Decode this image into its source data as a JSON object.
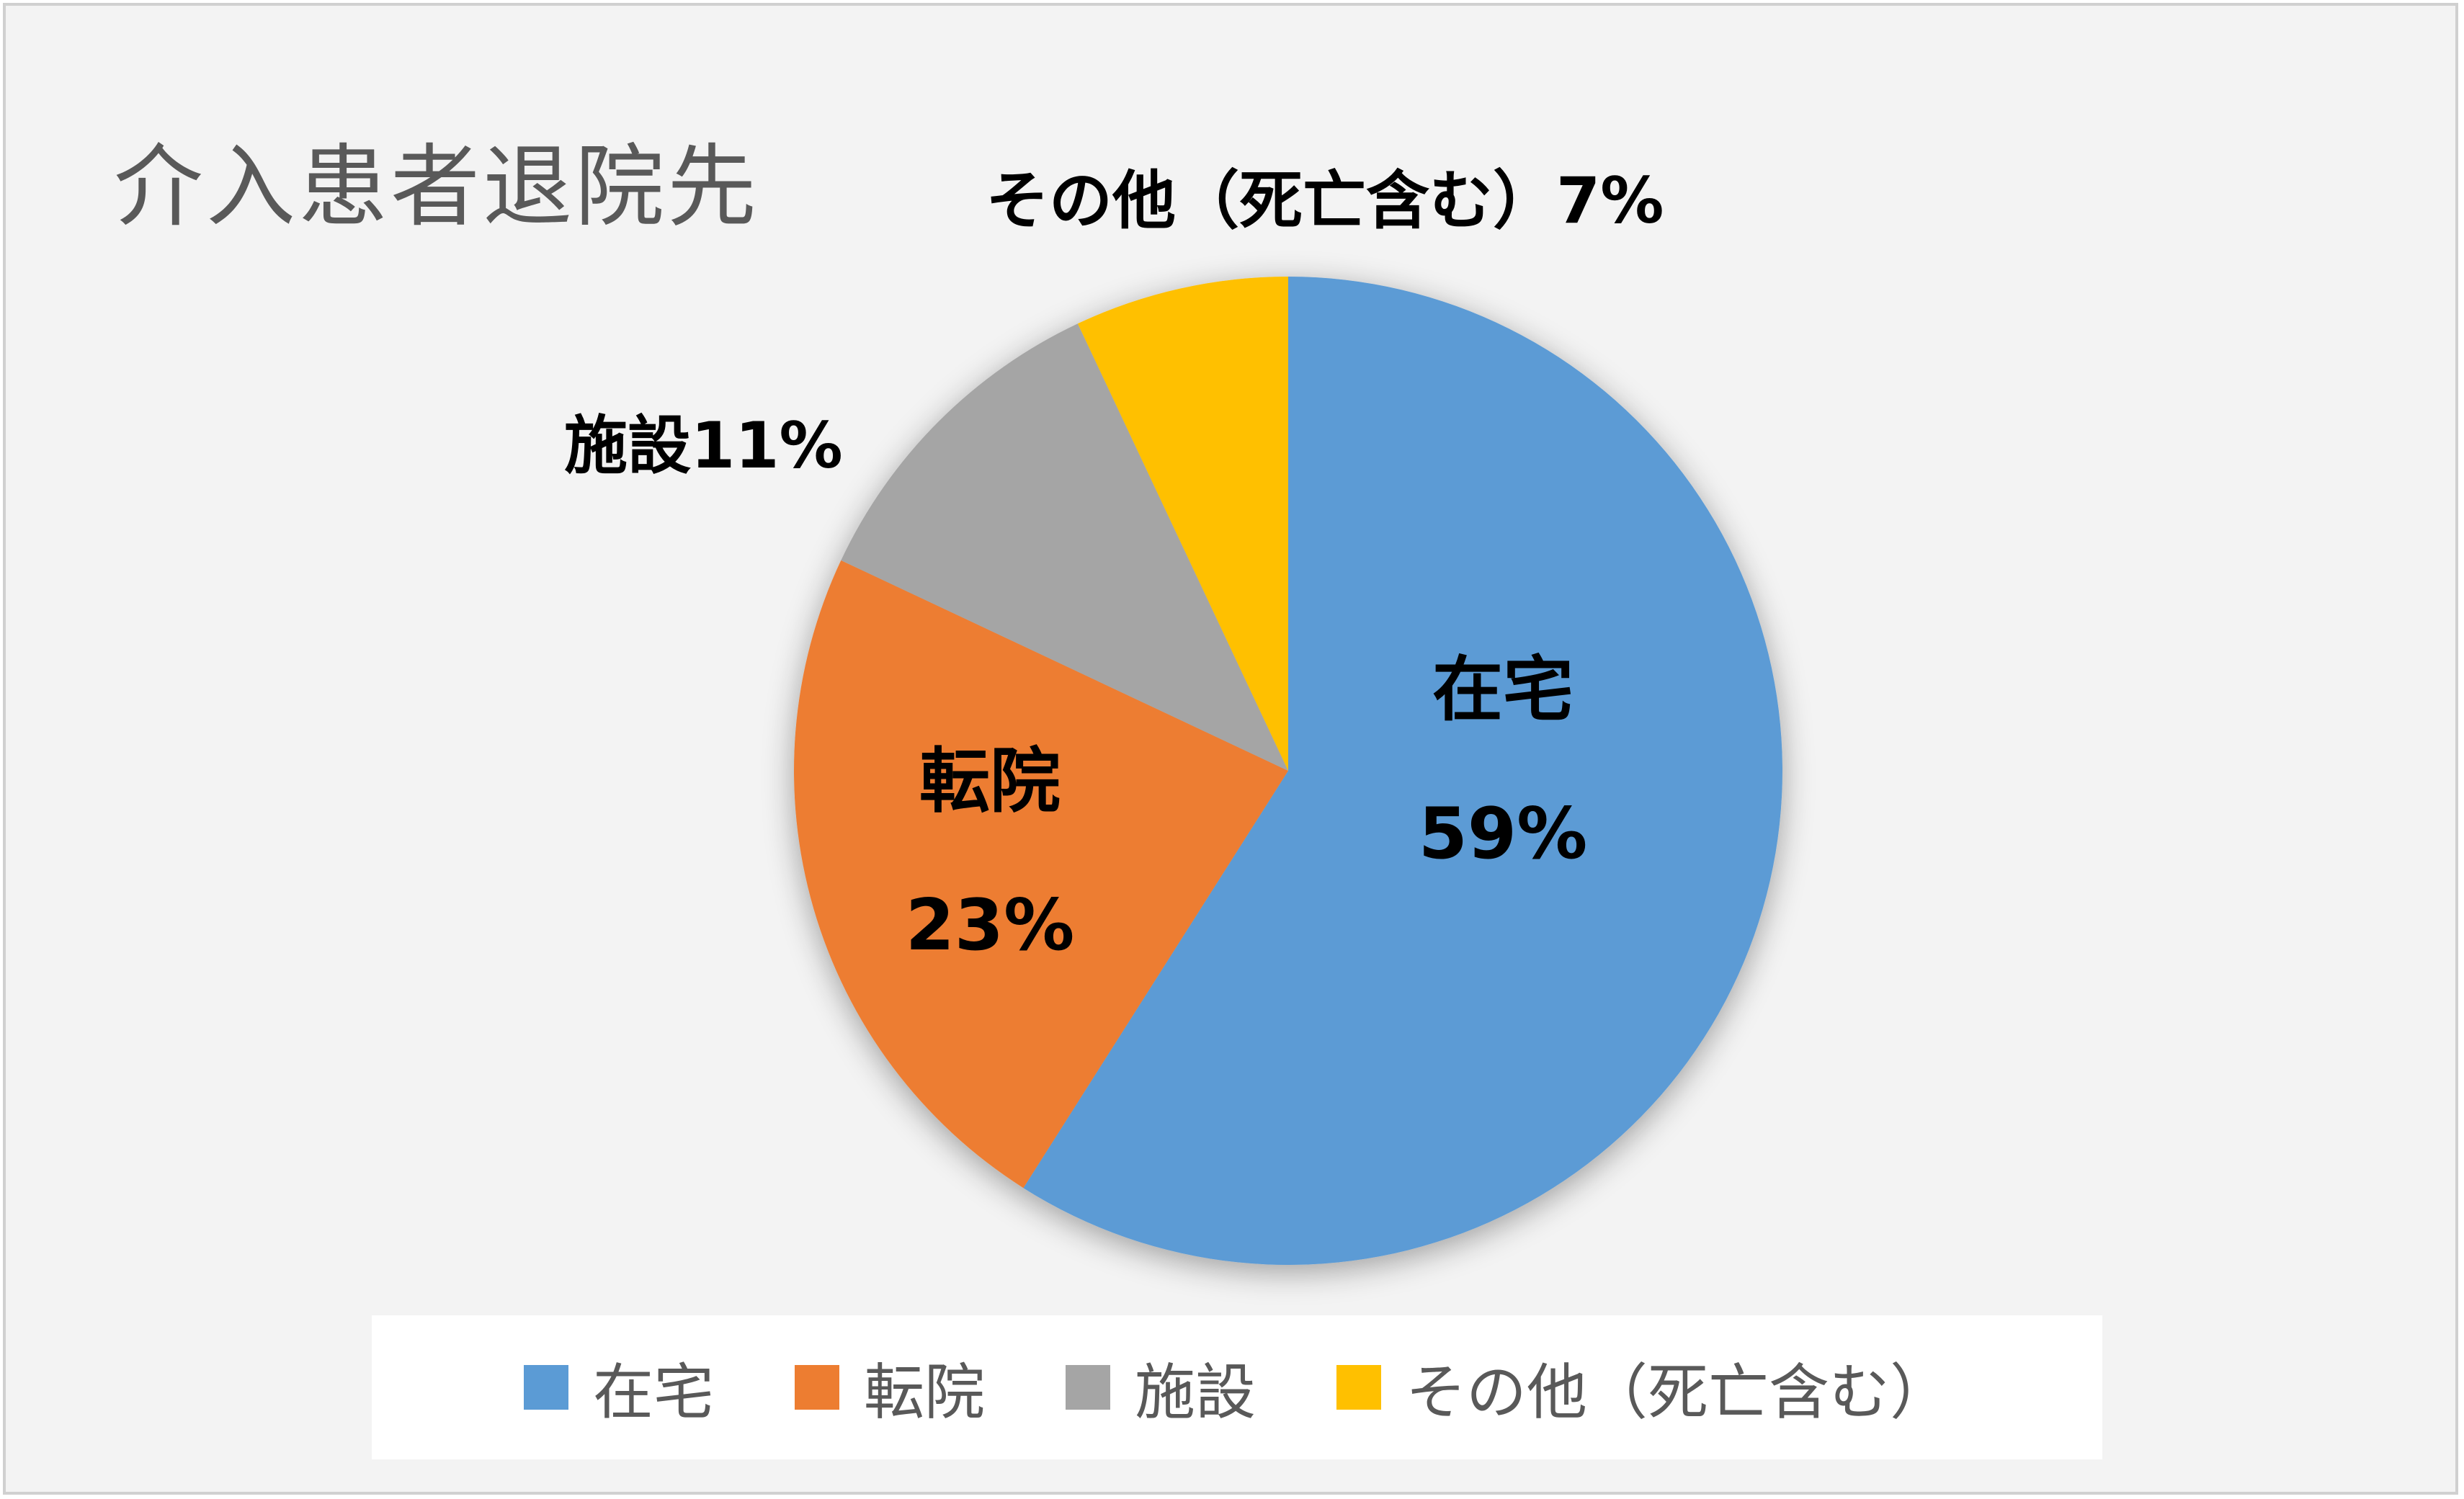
{
  "title": "介入患者退院先",
  "chart_data": {
    "type": "pie",
    "title": "介入患者退院先",
    "categories": [
      "在宅",
      "転院",
      "施設",
      "その他（死亡含む）"
    ],
    "values": [
      59,
      23,
      11,
      7
    ],
    "colors": [
      "#5b9bd5",
      "#ed7d31",
      "#a5a5a5",
      "#ffc000"
    ],
    "data_labels": [
      "59%",
      "23%",
      "施設11%",
      "その他（死亡含む）7%"
    ],
    "legend_position": "bottom"
  },
  "labels": {
    "home_name": "在宅",
    "home_pct": "59%",
    "transfer_name": "転院",
    "transfer_pct": "23%",
    "facility": "施設11%",
    "other": "その他（死亡含む）7%"
  },
  "legend": [
    {
      "label": "在宅",
      "color": "#5b9bd5"
    },
    {
      "label": "転院",
      "color": "#ed7d31"
    },
    {
      "label": "施設",
      "color": "#a5a5a5"
    },
    {
      "label": "その他（死亡含む）",
      "color": "#ffc000"
    }
  ]
}
